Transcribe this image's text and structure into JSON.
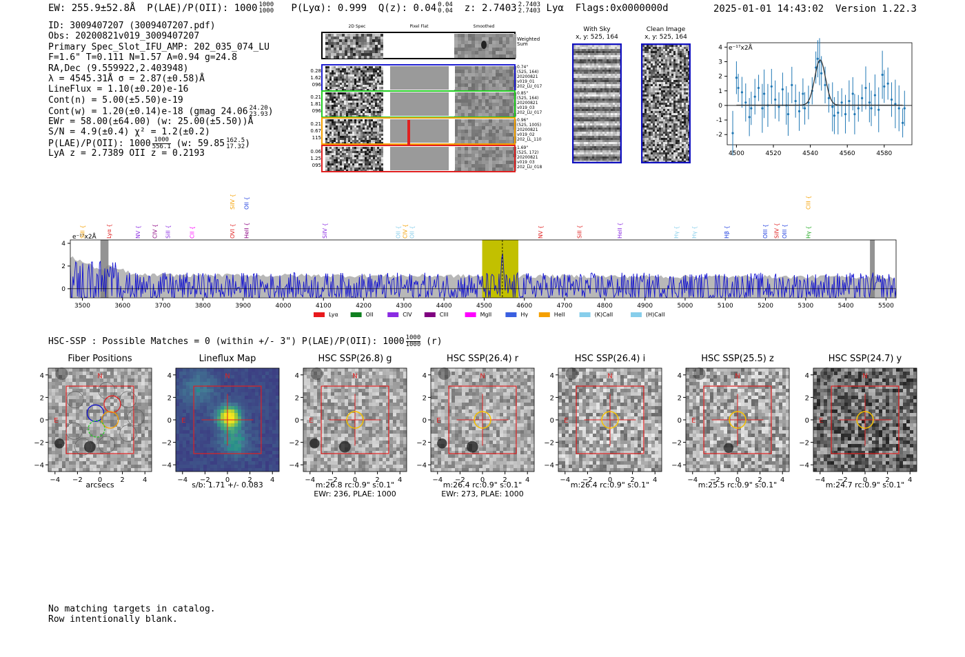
{
  "header": {
    "ew": "EW: 255.9±52.8Å",
    "plae_label": "P(LAE)/P(OII): 1000",
    "plae_hi": "1000",
    "plae_lo": "1000",
    "plya": "P(Lyα): 0.999",
    "qz_label": "Q(z): 0.04",
    "qz_hi": "0.04",
    "qz_lo": "0.04",
    "z_label": "z: 2.7403",
    "z_hi": "2.7403",
    "z_lo": "2.7403",
    "line": "Lyα",
    "flags": "Flags:0x0000000d",
    "datetime": "2025-01-01 14:43:02",
    "version": "Version 1.22.3"
  },
  "info": {
    "id": "ID: 3009407207 (3009407207.pdf)",
    "obs": "Obs: 20200821v019_3009407207",
    "primary": "Primary Spec_Slot_IFU_AMP: 202_035_074_LU",
    "fit": "F=1.6\"  T=0.111  N=1.57  A=0.94  g=24.8",
    "radec": "RA,Dec (9.559922,2.403948)",
    "lambda": "λ = 4545.31Å   σ = 2.87(±0.58)Å",
    "lineflux": "LineFlux = 1.10(±0.20)e-16",
    "contn": "Cont(n) = 5.00(±5.50)e-19",
    "contw": "Cont(w) = 1.20(±0.14)e-18 (gmag 24.06",
    "contw_hi": "24.20",
    "contw_lo": "23.93",
    "ewr": "EWr = 58.00(±64.00) (w: 25.00(±5.50))Å",
    "sn": "S/N = 4.9(±0.4)  χ² = 1.2(±0.2)",
    "plae": "P(LAE)/P(OII): 1000",
    "plae_hi": "1000",
    "plae_lo": "556.1",
    "plae_w": "(w: 59.85",
    "plae_w_hi": "162.5",
    "plae_w_lo": "17.32",
    "lyaz": "LyA z = 2.7389  OII z = 0.2193"
  },
  "fiber_panel": {
    "columns": [
      "2D Spec",
      "Pixel Flat",
      "Smoothed"
    ],
    "weighted_sum": "Weighted\nSum",
    "rows": [
      {
        "left": [
          "0.28",
          "1.62",
          "096"
        ],
        "right": [
          "0.74\"",
          "(525, 164)",
          "20200821",
          "v019_01",
          "202_LU_017"
        ],
        "color": "#1f1fd0"
      },
      {
        "left": [
          "0.21",
          "1.81",
          "096"
        ],
        "right": [
          "0.85\"",
          "(525, 164)",
          "20200821",
          "v019_03",
          "202_LU_017"
        ],
        "color": "#22cc22"
      },
      {
        "left": [
          "0.21",
          "0.67",
          "115"
        ],
        "right": [
          "0.96\"",
          "(525, 1005)",
          "20200821",
          "v019_02",
          "202_LL_110"
        ],
        "color": "#f5a000"
      },
      {
        "left": [
          "0.06",
          "1.25",
          "095"
        ],
        "right": [
          "1.69\"",
          "(525, 172)",
          "20200821",
          "v019_03",
          "202_LU_018"
        ],
        "color": "#e02020"
      }
    ]
  },
  "sky_panels": [
    {
      "title": "With Sky",
      "subtitle": "x, y: 525, 164"
    },
    {
      "title": "Clean Image",
      "subtitle": "x, y: 525, 164"
    }
  ],
  "chart_data": [
    {
      "type": "line",
      "name": "zoom-fit",
      "ylabel": "e⁻¹⁷x2Å",
      "xlim": [
        4495,
        4595
      ],
      "ylim": [
        -2.7,
        4.3
      ],
      "xticks": [
        4500,
        4520,
        4540,
        4560,
        4580
      ],
      "yticks": [
        -2,
        -1,
        0,
        1,
        2,
        3,
        4
      ],
      "fit_center": 4545.3,
      "fit_sigma": 2.9,
      "fit_amp": 3.1,
      "points": [
        [
          4498,
          -1.9
        ],
        [
          4500,
          1.9
        ],
        [
          4501,
          1.2
        ],
        [
          4503,
          0.9
        ],
        [
          4505,
          0.2
        ],
        [
          4507,
          -0.8
        ],
        [
          4508,
          -0.2
        ],
        [
          4510,
          0.6
        ],
        [
          4512,
          1.2
        ],
        [
          4514,
          -0.2
        ],
        [
          4515,
          0.8
        ],
        [
          4517,
          0.0
        ],
        [
          4519,
          1.3
        ],
        [
          4521,
          0.4
        ],
        [
          4523,
          -0.1
        ],
        [
          4525,
          1.1
        ],
        [
          4527,
          0.0
        ],
        [
          4528,
          -0.6
        ],
        [
          4530,
          1.4
        ],
        [
          4532,
          0.3
        ],
        [
          4534,
          -0.4
        ],
        [
          4536,
          0.8
        ],
        [
          4537,
          -0.2
        ],
        [
          4539,
          0.2
        ],
        [
          4541,
          1.0
        ],
        [
          4543,
          2.6
        ],
        [
          4544,
          3.2
        ],
        [
          4545,
          3.0
        ],
        [
          4546,
          2.2
        ],
        [
          4548,
          1.4
        ],
        [
          4550,
          0.5
        ],
        [
          4552,
          -0.1
        ],
        [
          4553,
          -0.7
        ],
        [
          4555,
          -0.5
        ],
        [
          4557,
          0.2
        ],
        [
          4559,
          -0.6
        ],
        [
          4561,
          0.3
        ],
        [
          4563,
          0.8
        ],
        [
          4564,
          -0.6
        ],
        [
          4566,
          -0.2
        ],
        [
          4568,
          0.5
        ],
        [
          4570,
          1.2
        ],
        [
          4572,
          0.2
        ],
        [
          4573,
          -0.2
        ],
        [
          4575,
          0.7
        ],
        [
          4577,
          -0.3
        ],
        [
          4579,
          2.1
        ],
        [
          4580,
          1.3
        ],
        [
          4582,
          1.5
        ],
        [
          4584,
          0.4
        ],
        [
          4586,
          0.1
        ],
        [
          4588,
          -0.2
        ],
        [
          4590,
          -1.2
        ],
        [
          4591,
          -0.2
        ]
      ]
    },
    {
      "type": "line",
      "name": "full-spectrum",
      "ylabel": "e⁻¹⁷x2Å",
      "xlim": [
        3470,
        5525
      ],
      "ylim": [
        -0.8,
        4.3
      ],
      "xticks": [
        3500,
        3600,
        3700,
        3800,
        3900,
        4000,
        4100,
        4200,
        4300,
        4400,
        4500,
        4600,
        4700,
        4800,
        4900,
        5000,
        5100,
        5200,
        5300,
        5400,
        5500
      ],
      "yticks": [
        0,
        2,
        4
      ],
      "highlight_range": [
        4495,
        4585
      ],
      "peak": 4545.3,
      "line_marks": [
        {
          "label": "SiII",
          "x": 3500,
          "color": "#f5a000",
          "row": 2
        },
        {
          "label": "Lyα",
          "x": 3566,
          "color": "#e02020",
          "row": 2
        },
        {
          "label": "NV",
          "x": 3638,
          "color": "#8a2be2",
          "row": 2
        },
        {
          "label": "CIV",
          "x": 3680,
          "color": "#8b0080",
          "row": 2
        },
        {
          "label": "SiII",
          "x": 3713,
          "color": "#8a2be2",
          "row": 2
        },
        {
          "label": "CII",
          "x": 3773,
          "color": "#ff00ff",
          "row": 2
        },
        {
          "label": "SiIV",
          "x": 3873,
          "color": "#f5a000",
          "row": 1
        },
        {
          "label": "OVI",
          "x": 3873,
          "color": "#e02020",
          "row": 2
        },
        {
          "label": "OII",
          "x": 3908,
          "color": "#1f3fe0",
          "row": 1
        },
        {
          "label": "HeII",
          "x": 3908,
          "color": "#8b0080",
          "row": 2
        },
        {
          "label": "SiIV",
          "x": 4103,
          "color": "#8a2be2",
          "row": 2
        },
        {
          "label": "OII",
          "x": 4286,
          "color": "#87ceeb",
          "row": 2
        },
        {
          "label": "CIV",
          "x": 4303,
          "color": "#f5a000",
          "row": 2
        },
        {
          "label": "OII",
          "x": 4320,
          "color": "#87ceeb",
          "row": 2
        },
        {
          "label": "NV",
          "x": 4640,
          "color": "#e02020",
          "row": 2
        },
        {
          "label": "SiII",
          "x": 4737,
          "color": "#e02020",
          "row": 2
        },
        {
          "label": "HeII",
          "x": 4837,
          "color": "#8a2be2",
          "row": 2
        },
        {
          "label": "Hγ",
          "x": 4978,
          "color": "#87ceeb",
          "row": 2
        },
        {
          "label": "Hγ",
          "x": 5022,
          "color": "#87ceeb",
          "row": 2
        },
        {
          "label": "Hβ",
          "x": 5103,
          "color": "#1f3fe0",
          "row": 2
        },
        {
          "label": "OIII",
          "x": 5199,
          "color": "#1f3fe0",
          "row": 2
        },
        {
          "label": "SiIV",
          "x": 5227,
          "color": "#e02020",
          "row": 2
        },
        {
          "label": "OIII",
          "x": 5247,
          "color": "#1f3fe0",
          "row": 2
        },
        {
          "label": "CIII",
          "x": 5306,
          "color": "#f5a000",
          "row": 1
        },
        {
          "label": "Hγ",
          "x": 5306,
          "color": "#22aa22",
          "row": 2
        }
      ]
    }
  ],
  "legend": [
    {
      "label": "Lyα",
      "color": "#e8191c"
    },
    {
      "label": "OII",
      "color": "#0f7f1f"
    },
    {
      "label": "CIV",
      "color": "#8a2be2"
    },
    {
      "label": "CIII",
      "color": "#800080"
    },
    {
      "label": "MgII",
      "color": "#ff00ff"
    },
    {
      "label": "Hγ",
      "color": "#3a5fe0"
    },
    {
      "label": "HeII",
      "color": "#f5a000"
    },
    {
      "label": "(K)CaII",
      "color": "#87ceeb"
    },
    {
      "label": "(H)CaII",
      "color": "#87ceeb"
    }
  ],
  "hsc": {
    "title": "HSC-SSP : Possible Matches = 0 (within +/- 3\")  P(LAE)/P(OII): 1000",
    "title_hi": "1000",
    "title_lo": "1000",
    "title_end": "(r)"
  },
  "cutouts": [
    {
      "title": "Fiber Positions",
      "caption1": "arcsecs",
      "caption2": "",
      "kind": "fiber"
    },
    {
      "title": "Lineflux Map",
      "caption1": "s/b: 1.71 +/- 0.083",
      "caption2": "",
      "kind": "lineflux"
    },
    {
      "title": "HSC SSP(26.8) g",
      "caption1": "m:26.8 rc:0.9\"  s:0.1\"",
      "caption2": "EWr: 236, PLAE: 1000",
      "kind": "g"
    },
    {
      "title": "HSC SSP(26.4) r",
      "caption1": "m:26.4 rc:0.9\"  s:0.1\"",
      "caption2": "EWr: 273, PLAE: 1000",
      "kind": "r"
    },
    {
      "title": "HSC SSP(26.4) i",
      "caption1": "m:26.4 rc:0.9\"  s:0.1\"",
      "caption2": "",
      "kind": "i"
    },
    {
      "title": "HSC SSP(25.5) z",
      "caption1": "m:25.5 rc:0.9\"  s:0.1\"",
      "caption2": "",
      "kind": "z"
    },
    {
      "title": "HSC SSP(24.7) y",
      "caption1": "m:24.7 rc:0.9\"  s:0.1\"",
      "caption2": "",
      "kind": "y"
    }
  ],
  "cutout_axes": {
    "ticks": [
      -4,
      -2,
      0,
      2,
      4
    ],
    "north": "N",
    "east": "E"
  },
  "footer": {
    "line1": "No matching targets in catalog.",
    "line2": "Row intentionally blank."
  }
}
